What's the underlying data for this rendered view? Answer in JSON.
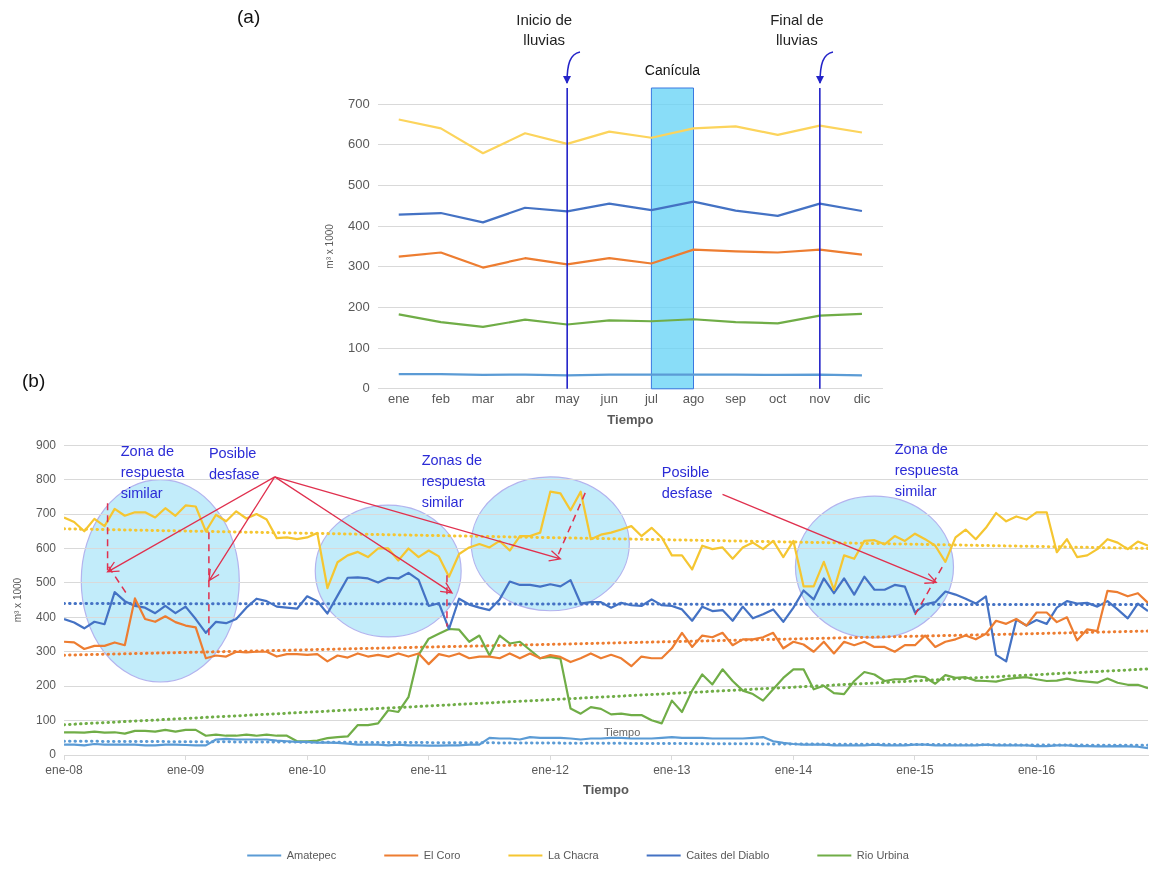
{
  "chart_data": [
    {
      "type": "line",
      "title": "(a)",
      "xlabel": "Tiempo",
      "ylabel": "m³ x 1000",
      "categories": [
        "ene",
        "feb",
        "mar",
        "abr",
        "may",
        "jun",
        "jul",
        "ago",
        "sep",
        "oct",
        "nov",
        "dic"
      ],
      "series": [
        {
          "color": "#5b9bd5",
          "values": [
            36,
            36,
            34,
            35,
            33,
            35,
            35,
            35,
            35,
            34,
            35,
            33
          ]
        },
        {
          "color": "#ed7d31",
          "values": [
            325,
            335,
            298,
            321,
            306,
            321,
            308,
            342,
            338,
            335,
            342,
            330
          ]
        },
        {
          "color": "#fcd45c",
          "values": [
            662,
            640,
            579,
            628,
            602,
            632,
            617,
            640,
            645,
            624,
            647,
            630
          ]
        },
        {
          "color": "#4472c4",
          "values": [
            428,
            432,
            409,
            445,
            436,
            455,
            439,
            460,
            438,
            425,
            455,
            437
          ]
        },
        {
          "color": "#70ad47",
          "values": [
            183,
            164,
            152,
            170,
            158,
            168,
            166,
            171,
            164,
            161,
            180,
            184
          ]
        }
      ],
      "ylim": [
        0,
        700
      ],
      "yticks": [
        0,
        100,
        200,
        300,
        400,
        500,
        600,
        700
      ],
      "grid": "y",
      "legend": false,
      "marker": "none",
      "ref_lines": [
        {
          "axis": "x",
          "value": "may",
          "label": "Inicio de lluvias",
          "color": "#2323c8"
        },
        {
          "axis": "x",
          "value": "nov",
          "label": "Final de lluvias",
          "color": "#2323c8"
        }
      ],
      "bands": [
        {
          "axis": "x",
          "from": "jul",
          "to": "ago",
          "label": "Canícula",
          "color": "#62d2f5"
        }
      ]
    },
    {
      "type": "line",
      "title": "(b)",
      "xlabel": "Tiempo",
      "ylabel": "m³ x 1000",
      "x": [
        "2008-01",
        "2008-02",
        "2008-03",
        "2008-04",
        "2008-05",
        "2008-06",
        "2008-07",
        "2008-08",
        "2008-09",
        "2008-10",
        "2008-11",
        "2008-12",
        "2009-01",
        "2009-02",
        "2009-03",
        "2009-04",
        "2009-05",
        "2009-06",
        "2009-07",
        "2009-08",
        "2009-09",
        "2009-10",
        "2009-11",
        "2009-12",
        "2010-01",
        "2010-02",
        "2010-03",
        "2010-04",
        "2010-05",
        "2010-06",
        "2010-07",
        "2010-08",
        "2010-09",
        "2010-10",
        "2010-11",
        "2010-12",
        "2011-01",
        "2011-02",
        "2011-03",
        "2011-04",
        "2011-05",
        "2011-06",
        "2011-07",
        "2011-08",
        "2011-09",
        "2011-10",
        "2011-11",
        "2011-12",
        "2012-01",
        "2012-02",
        "2012-03",
        "2012-04",
        "2012-05",
        "2012-06",
        "2012-07",
        "2012-08",
        "2012-09",
        "2012-10",
        "2012-11",
        "2012-12",
        "2013-01",
        "2013-02",
        "2013-03",
        "2013-04",
        "2013-05",
        "2013-06",
        "2013-07",
        "2013-08",
        "2013-09",
        "2013-10",
        "2013-11",
        "2013-12",
        "2014-01",
        "2014-02",
        "2014-03",
        "2014-04",
        "2014-05",
        "2014-06",
        "2014-07",
        "2014-08",
        "2014-09",
        "2014-10",
        "2014-11",
        "2014-12",
        "2015-01",
        "2015-02",
        "2015-03",
        "2015-04",
        "2015-05",
        "2015-06",
        "2015-07",
        "2015-08",
        "2015-09",
        "2015-10",
        "2015-11",
        "2015-12",
        "2016-01",
        "2016-02",
        "2016-03",
        "2016-04",
        "2016-05",
        "2016-06",
        "2016-07",
        "2016-08",
        "2016-09",
        "2016-10",
        "2016-11",
        "2016-12"
      ],
      "series": [
        {
          "name": "Amatepec",
          "color": "#5b9bd5",
          "values": [
            30,
            30,
            28,
            32,
            30,
            30,
            30,
            30,
            28,
            28,
            30,
            30,
            29,
            28,
            28,
            45,
            47,
            45,
            45,
            45,
            45,
            42,
            40,
            38,
            38,
            36,
            36,
            35,
            33,
            30,
            30,
            30,
            28,
            30,
            28,
            28,
            27,
            27,
            28,
            28,
            30,
            30,
            50,
            48,
            48,
            45,
            52,
            50,
            50,
            50,
            48,
            45,
            48,
            48,
            50,
            50,
            48,
            48,
            48,
            50,
            52,
            50,
            50,
            50,
            48,
            48,
            48,
            48,
            50,
            52,
            40,
            35,
            32,
            30,
            30,
            30,
            28,
            28,
            28,
            28,
            30,
            28,
            28,
            28,
            30,
            30,
            28,
            28,
            28,
            28,
            28,
            30,
            28,
            28,
            28,
            28,
            26,
            26,
            28,
            28,
            26,
            26,
            25,
            25,
            26,
            25,
            24,
            20
          ]
        },
        {
          "name": "El Coro",
          "color": "#ed7d31",
          "values": [
            329,
            327,
            308,
            317,
            317,
            327,
            319,
            455,
            395,
            387,
            403,
            386,
            376,
            371,
            281,
            289,
            286,
            300,
            298,
            300,
            300,
            286,
            293,
            293,
            291,
            293,
            272,
            289,
            283,
            295,
            286,
            291,
            285,
            295,
            286,
            295,
            264,
            293,
            286,
            295,
            281,
            286,
            286,
            281,
            295,
            281,
            295,
            281,
            290,
            285,
            270,
            281,
            295,
            281,
            291,
            281,
            258,
            286,
            281,
            281,
            310,
            355,
            314,
            347,
            342,
            355,
            319,
            336,
            336,
            342,
            355,
            310,
            329,
            321,
            300,
            329,
            295,
            329,
            319,
            329,
            314,
            314,
            300,
            319,
            319,
            347,
            314,
            329,
            336,
            347,
            336,
            352,
            390,
            381,
            395,
            376,
            414,
            414,
            386,
            400,
            333,
            365,
            360,
            477,
            473,
            461,
            470,
            442
          ]
        },
        {
          "name": "La Chacra",
          "color": "#f5c631",
          "values": [
            690,
            677,
            650,
            686,
            665,
            715,
            695,
            705,
            705,
            690,
            717,
            695,
            725,
            722,
            650,
            698,
            679,
            708,
            687,
            700,
            684,
            630,
            632,
            627,
            632,
            645,
            485,
            560,
            580,
            590,
            575,
            600,
            600,
            565,
            600,
            575,
            594,
            577,
            518,
            584,
            603,
            613,
            603,
            622,
            594,
            636,
            636,
            646,
            765,
            760,
            711,
            765,
            627,
            640,
            646,
            655,
            665,
            636,
            660,
            632,
            580,
            580,
            539,
            608,
            598,
            603,
            570,
            603,
            617,
            598,
            622,
            575,
            622,
            490,
            490,
            561,
            480,
            580,
            570,
            622,
            624,
            612,
            636,
            622,
            643,
            627,
            608,
            561,
            632,
            655,
            627,
            660,
            703,
            679,
            693,
            684,
            705,
            705,
            589,
            627,
            575,
            580,
            598,
            627,
            617,
            598,
            620,
            608
          ]
        },
        {
          "name": "Caites del Diablo",
          "color": "#4472c4",
          "values": [
            395,
            385,
            368,
            387,
            380,
            473,
            447,
            433,
            428,
            412,
            433,
            412,
            431,
            395,
            355,
            387,
            383,
            395,
            428,
            454,
            447,
            431,
            428,
            425,
            461,
            447,
            411,
            463,
            515,
            516,
            513,
            501,
            515,
            513,
            529,
            509,
            433,
            441,
            366,
            454,
            437,
            428,
            421,
            452,
            504,
            494,
            494,
            489,
            496,
            490,
            508,
            440,
            444,
            444,
            428,
            442,
            435,
            433,
            452,
            435,
            433,
            423,
            390,
            431,
            418,
            421,
            390,
            431,
            397,
            409,
            423,
            387,
            428,
            478,
            452,
            513,
            470,
            513,
            466,
            518,
            480,
            480,
            494,
            489,
            414,
            438,
            444,
            475,
            466,
            454,
            440,
            461,
            291,
            272,
            393,
            376,
            392,
            381,
            428,
            447,
            440,
            442,
            431,
            447,
            423,
            397,
            440,
            418
          ]
        },
        {
          "name": "Rio Urbina",
          "color": "#70ad47",
          "values": [
            66,
            66,
            65,
            68,
            65,
            66,
            62,
            70,
            70,
            68,
            73,
            68,
            73,
            73,
            56,
            59,
            56,
            56,
            59,
            56,
            59,
            56,
            56,
            40,
            40,
            42,
            49,
            52,
            54,
            87,
            87,
            92,
            130,
            125,
            168,
            291,
            338,
            352,
            366,
            364,
            329,
            347,
            289,
            347,
            324,
            329,
            305,
            281,
            285,
            280,
            135,
            120,
            139,
            134,
            118,
            120,
            116,
            116,
            101,
            92,
            158,
            125,
            187,
            234,
            205,
            249,
            215,
            187,
            177,
            158,
            191,
            224,
            249,
            249,
            191,
            201,
            180,
            177,
            215,
            241,
            234,
            215,
            220,
            220,
            229,
            226,
            207,
            232,
            224,
            226,
            216,
            215,
            213,
            220,
            224,
            226,
            220,
            215,
            216,
            222,
            216,
            213,
            210,
            222,
            210,
            204,
            204,
            194
          ]
        },
        {
          "type": "line",
          "line_style": "dotted",
          "color": "#5b9bd5",
          "x": [
            "2008-01",
            "2016-12"
          ],
          "values": [
            40,
            28
          ]
        },
        {
          "type": "line",
          "line_style": "dotted",
          "color": "#ed7d31",
          "x": [
            "2008-01",
            "2016-12"
          ],
          "values": [
            290,
            360
          ]
        },
        {
          "type": "line",
          "line_style": "dotted",
          "color": "#f5c631",
          "x": [
            "2008-01",
            "2016-12"
          ],
          "values": [
            657,
            600
          ]
        },
        {
          "type": "line",
          "line_style": "dotted",
          "color": "#4472c4",
          "x": [
            "2008-01",
            "2016-12"
          ],
          "values": [
            440,
            437
          ]
        },
        {
          "type": "line",
          "line_style": "dotted",
          "color": "#70ad47",
          "x": [
            "2008-01",
            "2016-12"
          ],
          "values": [
            88,
            250
          ]
        }
      ],
      "xlim": [
        "2008-01",
        "2016-12"
      ],
      "xticks": [
        {
          "value": "2008-01",
          "label": "ene-08"
        },
        {
          "value": "2009-01",
          "label": "ene-09"
        },
        {
          "value": "2010-01",
          "label": "ene-10"
        },
        {
          "value": "2011-01",
          "label": "ene-11"
        },
        {
          "value": "2012-01",
          "label": "ene-12"
        },
        {
          "value": "2013-01",
          "label": "ene-13"
        },
        {
          "value": "2014-01",
          "label": "ene-14"
        },
        {
          "value": "2015-01",
          "label": "ene-15"
        },
        {
          "value": "2016-01",
          "label": "ene-16"
        }
      ],
      "ylim": [
        0,
        900
      ],
      "yticks": [
        0,
        100,
        200,
        300,
        400,
        500,
        600,
        700,
        800,
        900
      ],
      "grid": "y",
      "legend": "bottom",
      "marker": "none",
      "annotations": [
        "Zona de respuesta similar",
        "Posible desfase",
        "Zonas de respuesta similar",
        "Posible desfase",
        "Zona de respuesta similar",
        "Tiempo"
      ]
    }
  ]
}
